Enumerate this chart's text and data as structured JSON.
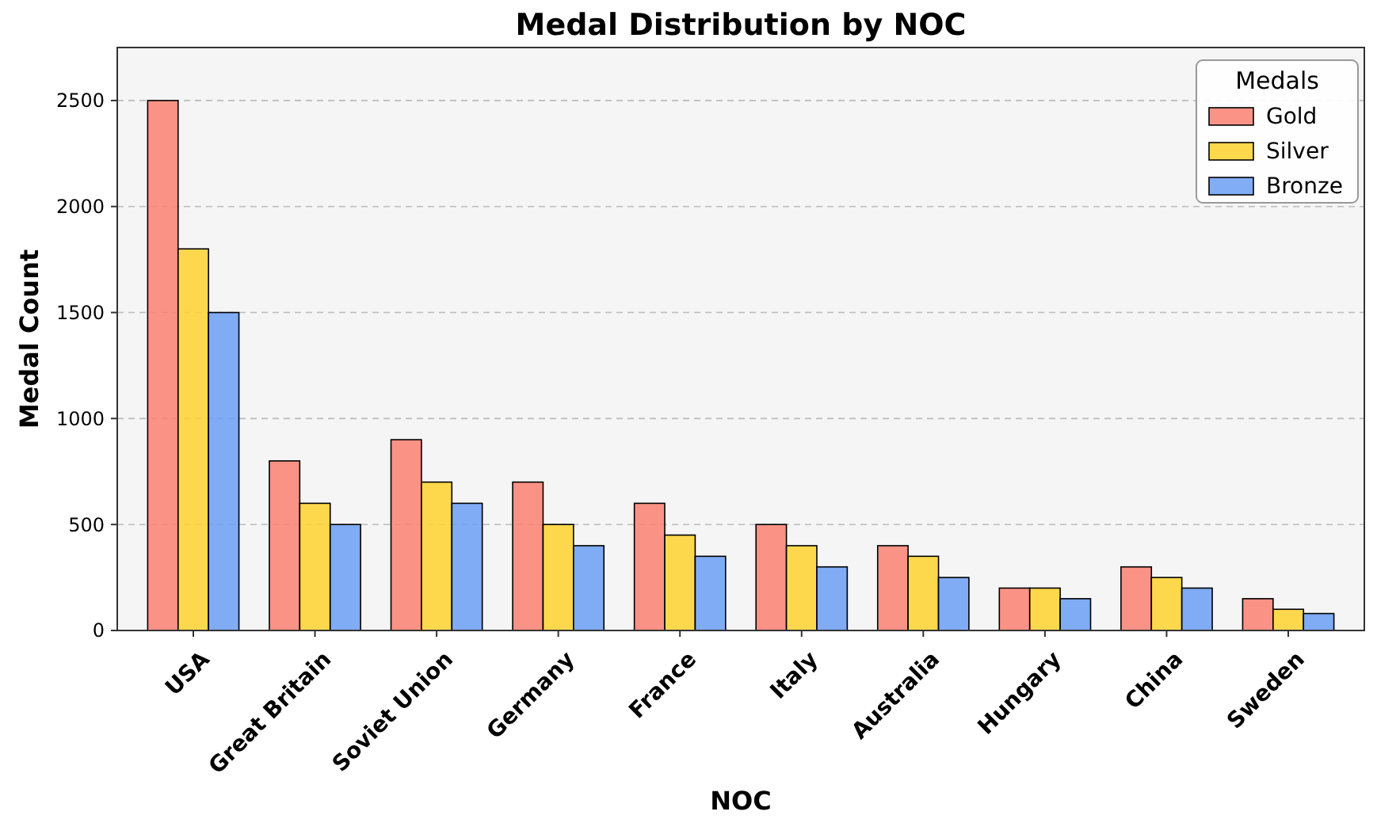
{
  "chart_data": {
    "type": "bar",
    "title": "Medal Distribution by NOC",
    "xlabel": "NOC",
    "ylabel": "Medal Count",
    "legend_title": "Medals",
    "categories": [
      "USA",
      "Great Britain",
      "Soviet Union",
      "Germany",
      "France",
      "Italy",
      "Australia",
      "Hungary",
      "China",
      "Sweden"
    ],
    "series": [
      {
        "name": "Gold",
        "color": "#fa8072",
        "values": [
          2500,
          800,
          900,
          700,
          600,
          500,
          400,
          200,
          300,
          150
        ]
      },
      {
        "name": "Silver",
        "color": "#ffd22e",
        "values": [
          1800,
          600,
          700,
          500,
          450,
          400,
          350,
          200,
          250,
          100
        ]
      },
      {
        "name": "Bronze",
        "color": "#6b9ef5",
        "values": [
          1500,
          500,
          600,
          400,
          350,
          300,
          250,
          150,
          200,
          80
        ]
      }
    ],
    "ylim": [
      0,
      2750
    ],
    "yticks": [
      0,
      500,
      1000,
      1500,
      2000,
      2500
    ],
    "grid": "y",
    "legend": "top right"
  }
}
